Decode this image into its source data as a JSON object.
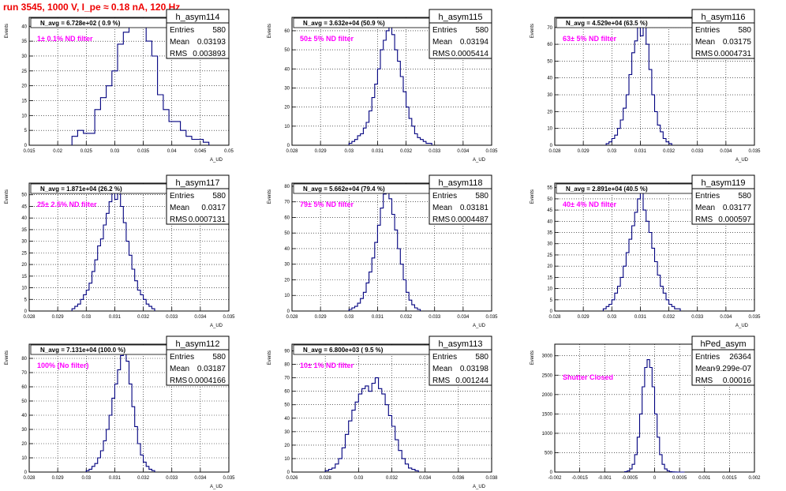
{
  "page": {
    "title": "run 3545,  1000 V, I_pe ≈ 0.18 nA, 120 Hz"
  },
  "chart_data": [
    {
      "type": "histogram",
      "name": "h_asym114",
      "stats": {
        "entries": "580",
        "mean": "0.03193",
        "rms": "0.003893"
      },
      "navg": "N_avg = 6.728e+02 ( 0.9 %)",
      "filter": "1± 0.1% ND filter",
      "xlim": [
        0.015,
        0.05
      ],
      "ylim": [
        0,
        43
      ],
      "xticks": [
        0.015,
        0.02,
        0.025,
        0.03,
        0.035,
        0.04,
        0.045,
        0.05
      ],
      "xticklabels": [
        "0.015",
        "0.02",
        "0.025",
        "0.03",
        "0.035",
        "0.04",
        "0.045",
        "0.05"
      ],
      "yticks": [
        0,
        5,
        10,
        15,
        20,
        25,
        30,
        35,
        40
      ],
      "ylabel": "Events",
      "xlabel": "A_UD",
      "bins": {
        "start": 0.0225,
        "width": 0.001,
        "values": [
          3,
          5,
          4,
          4,
          12,
          16,
          20,
          25,
          34,
          38,
          40,
          41,
          42,
          35,
          30,
          17,
          12,
          8,
          8,
          5,
          3,
          2,
          2,
          1
        ]
      }
    },
    {
      "type": "histogram",
      "name": "h_asym115",
      "stats": {
        "entries": "580",
        "mean": "0.03194",
        "rms": "0.0005414"
      },
      "navg": "N_avg = 3.632e+04 (50.9 %)",
      "filter": "50± 5% ND filter",
      "xlim": [
        0.028,
        0.035
      ],
      "ylim": [
        0,
        67
      ],
      "xticks": [
        0.028,
        0.029,
        0.03,
        0.031,
        0.032,
        0.033,
        0.034,
        0.035
      ],
      "xticklabels": [
        "0.028",
        "0.029",
        "0.03",
        "0.031",
        "0.032",
        "0.033",
        "0.034",
        "0.035"
      ],
      "yticks": [
        0,
        10,
        20,
        30,
        40,
        50,
        60
      ],
      "ylabel": "Events",
      "xlabel": "A_UD",
      "bins": {
        "start": 0.03,
        "width": 0.0001,
        "values": [
          1,
          2,
          3,
          5,
          6,
          9,
          12,
          18,
          25,
          32,
          40,
          50,
          55,
          60,
          65,
          58,
          50,
          44,
          36,
          28,
          20,
          14,
          10,
          6,
          4,
          3,
          2,
          1,
          1
        ]
      }
    },
    {
      "type": "histogram",
      "name": "h_asym116",
      "stats": {
        "entries": "580",
        "mean": "0.03175",
        "rms": "0.0004731"
      },
      "navg": "N_avg = 4.529e+04 (63.5 %)",
      "filter": "63± 5% ND filter",
      "xlim": [
        0.028,
        0.035
      ],
      "ylim": [
        0,
        76
      ],
      "xticks": [
        0.028,
        0.029,
        0.03,
        0.031,
        0.032,
        0.033,
        0.034,
        0.035
      ],
      "xticklabels": [
        "0.028",
        "0.029",
        "0.03",
        "0.031",
        "0.032",
        "0.033",
        "0.034",
        "0.035"
      ],
      "yticks": [
        0,
        10,
        20,
        30,
        40,
        50,
        60,
        70
      ],
      "ylabel": "Events",
      "xlabel": "A_UD",
      "bins": {
        "start": 0.0298,
        "width": 0.0001,
        "values": [
          1,
          2,
          4,
          6,
          10,
          15,
          22,
          30,
          42,
          55,
          62,
          70,
          65,
          73,
          60,
          45,
          30,
          20,
          12,
          8,
          4,
          2,
          1
        ]
      }
    },
    {
      "type": "histogram",
      "name": "h_asym117",
      "stats": {
        "entries": "580",
        "mean": "0.0317",
        "rms": "0.0007131"
      },
      "navg": "N_avg = 1.871e+04 (26.2 %)",
      "filter": "25± 2.5% ND filter",
      "xlim": [
        0.028,
        0.035
      ],
      "ylim": [
        0,
        55
      ],
      "xticks": [
        0.028,
        0.029,
        0.03,
        0.031,
        0.032,
        0.033,
        0.034,
        0.035
      ],
      "xticklabels": [
        "0.028",
        "0.029",
        "0.03",
        "0.031",
        "0.032",
        "0.033",
        "0.034",
        "0.035"
      ],
      "yticks": [
        0,
        5,
        10,
        15,
        20,
        25,
        30,
        35,
        40,
        45,
        50
      ],
      "ylabel": "Events",
      "xlabel": "A_UD",
      "bins": {
        "start": 0.0295,
        "width": 0.0001,
        "values": [
          1,
          2,
          3,
          5,
          7,
          9,
          12,
          17,
          22,
          28,
          31,
          37,
          42,
          47,
          52,
          48,
          53,
          45,
          38,
          30,
          24,
          18,
          13,
          9,
          7,
          5,
          3,
          2,
          1
        ]
      }
    },
    {
      "type": "histogram",
      "name": "h_asym118",
      "stats": {
        "entries": "580",
        "mean": "0.03181",
        "rms": "0.0004487"
      },
      "navg": "N_avg = 5.662e+04 (79.4 %)",
      "filter": "79± 5% ND filter",
      "xlim": [
        0.028,
        0.035
      ],
      "ylim": [
        0,
        82
      ],
      "xticks": [
        0.028,
        0.029,
        0.03,
        0.031,
        0.032,
        0.033,
        0.034,
        0.035
      ],
      "xticklabels": [
        "0.028",
        "0.029",
        "0.03",
        "0.031",
        "0.032",
        "0.033",
        "0.034",
        "0.035"
      ],
      "yticks": [
        0,
        10,
        20,
        30,
        40,
        50,
        60,
        70,
        80
      ],
      "ylabel": "Events",
      "xlabel": "A_UD",
      "bins": {
        "start": 0.03,
        "width": 0.0001,
        "values": [
          1,
          2,
          3,
          5,
          8,
          12,
          18,
          25,
          34,
          44,
          55,
          66,
          75,
          78,
          72,
          62,
          52,
          40,
          30,
          20,
          12,
          7,
          4,
          2,
          1
        ]
      }
    },
    {
      "type": "histogram",
      "name": "h_asym119",
      "stats": {
        "entries": "580",
        "mean": "0.03177",
        "rms": "0.000597"
      },
      "navg": "N_avg = 2.891e+04 (40.5 %)",
      "filter": "40± 4% ND filter",
      "xlim": [
        0.028,
        0.035
      ],
      "ylim": [
        0,
        57
      ],
      "xticks": [
        0.028,
        0.029,
        0.03,
        0.031,
        0.032,
        0.033,
        0.034,
        0.035
      ],
      "xticklabels": [
        "0.028",
        "0.029",
        "0.03",
        "0.031",
        "0.032",
        "0.033",
        "0.034",
        "0.035"
      ],
      "yticks": [
        0,
        5,
        10,
        15,
        20,
        25,
        30,
        35,
        40,
        45,
        50,
        55
      ],
      "ylabel": "Events",
      "xlabel": "A_UD",
      "bins": {
        "start": 0.0297,
        "width": 0.0001,
        "values": [
          1,
          2,
          3,
          5,
          8,
          11,
          15,
          20,
          26,
          32,
          38,
          44,
          50,
          54,
          45,
          40,
          35,
          28,
          22,
          16,
          11,
          8,
          5,
          3,
          2,
          1,
          1
        ]
      }
    },
    {
      "type": "histogram",
      "name": "h_asym112",
      "stats": {
        "entries": "580",
        "mean": "0.03187",
        "rms": "0.0004166"
      },
      "navg": "N_avg = 7.131e+04 (100.0 %)",
      "filter": "100% (No filter)",
      "xlim": [
        0.028,
        0.035
      ],
      "ylim": [
        0,
        90
      ],
      "xticks": [
        0.028,
        0.029,
        0.03,
        0.031,
        0.032,
        0.033,
        0.034,
        0.035
      ],
      "xticklabels": [
        "0.028",
        "0.029",
        "0.03",
        "0.031",
        "0.032",
        "0.033",
        "0.034",
        "0.035"
      ],
      "yticks": [
        0,
        10,
        20,
        30,
        40,
        50,
        60,
        70,
        80
      ],
      "ylabel": "Events",
      "xlabel": "A_UD",
      "bins": {
        "start": 0.03,
        "width": 0.0001,
        "values": [
          1,
          2,
          4,
          6,
          10,
          15,
          22,
          30,
          40,
          52,
          62,
          72,
          82,
          86,
          78,
          62,
          46,
          32,
          20,
          12,
          7,
          4,
          2,
          1
        ]
      }
    },
    {
      "type": "histogram",
      "name": "h_asym113",
      "stats": {
        "entries": "580",
        "mean": "0.03198",
        "rms": "0.001244"
      },
      "navg": "N_avg = 6.800e+03 ( 9.5 %)",
      "filter": "10± 1% ND filter",
      "xlim": [
        0.026,
        0.038
      ],
      "ylim": [
        0,
        95
      ],
      "xticks": [
        0.026,
        0.028,
        0.03,
        0.032,
        0.034,
        0.036,
        0.038
      ],
      "xticklabels": [
        "0.026",
        "0.028",
        "0.03",
        "0.032",
        "0.034",
        "0.036",
        "0.038"
      ],
      "yticks": [
        0,
        10,
        20,
        30,
        40,
        50,
        60,
        70,
        80,
        90
      ],
      "ylabel": "Events",
      "xlabel": "A_UD",
      "bins": {
        "start": 0.028,
        "width": 0.0002,
        "values": [
          1,
          2,
          3,
          6,
          10,
          18,
          28,
          38,
          46,
          52,
          58,
          62,
          64,
          60,
          66,
          70,
          62,
          58,
          50,
          42,
          34,
          24,
          16,
          10,
          6,
          3,
          2,
          1
        ]
      }
    },
    {
      "type": "histogram",
      "name": "hPed_asym",
      "stats": {
        "entries": "26364",
        "mean": "-9.299e-07",
        "rms": "0.00016"
      },
      "navg": "",
      "filter": "Shutter Closed",
      "xlim": [
        -0.002,
        0.002
      ],
      "ylim": [
        0,
        3300
      ],
      "xticks": [
        -0.002,
        -0.0015,
        -0.001,
        -0.0005,
        0,
        0.0005,
        0.001,
        0.0015,
        0.002
      ],
      "xticklabels": [
        "-0.002",
        "-0.0015",
        "-0.001",
        "-0.0005",
        "0",
        "0.0005",
        "0.001",
        "0.0015",
        "0.002"
      ],
      "yticks": [
        0,
        500,
        1000,
        1500,
        2000,
        2500,
        3000
      ],
      "ylabel": "Events",
      "xlabel": "",
      "bins": {
        "start": -0.0006,
        "width": 5e-05,
        "values": [
          10,
          30,
          80,
          200,
          450,
          900,
          1500,
          2200,
          2700,
          2900,
          2700,
          2200,
          1500,
          900,
          450,
          200,
          80,
          30,
          10,
          5,
          2,
          1,
          1,
          1
        ]
      }
    }
  ],
  "labels": {
    "entries": "Entries",
    "mean": "Mean",
    "rms": "RMS"
  },
  "colors": {
    "title": "#ee0000",
    "filter": "#ff00ff",
    "line": "#00007f"
  }
}
